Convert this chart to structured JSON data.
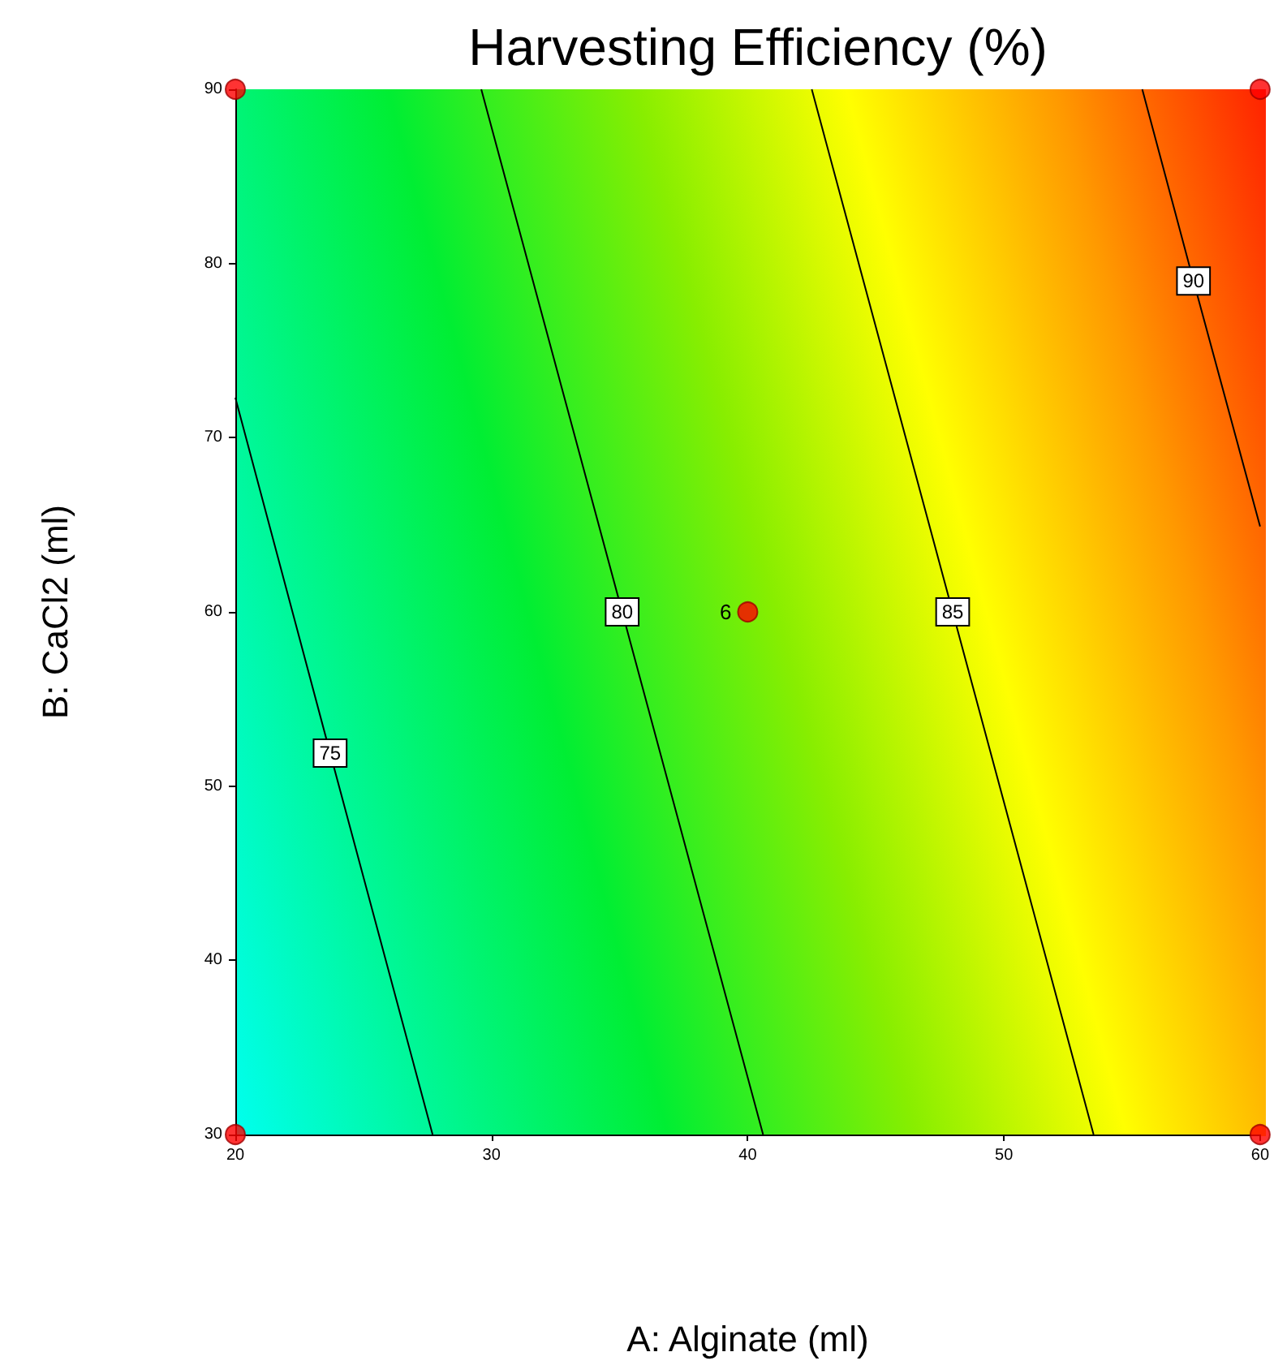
{
  "chart_data": {
    "type": "line",
    "title": "Harvesting Efficiency (%)",
    "xlabel": "A: Alginate (ml)",
    "ylabel": "B: CaCl2 (ml)",
    "xlim": [
      20,
      60
    ],
    "xticks": [
      20,
      30,
      40,
      50,
      60
    ],
    "ylim": [
      30,
      90
    ],
    "yticks": [
      30,
      40,
      50,
      60,
      70,
      80,
      90
    ],
    "grid": false,
    "legend": false,
    "line_style": "solid",
    "series": [
      {
        "name": "75",
        "color": "#000000",
        "x": [
          20,
          23.7,
          27.7
        ],
        "values": [
          72.3,
          51.9,
          30
        ]
      },
      {
        "name": "80",
        "color": "#000000",
        "x": [
          29.6,
          35.1,
          40.6
        ],
        "values": [
          90,
          60,
          30
        ]
      },
      {
        "name": "85",
        "color": "#000000",
        "x": [
          42.5,
          48.0,
          53.5
        ],
        "values": [
          90,
          60,
          30
        ]
      },
      {
        "name": "90",
        "color": "#000000",
        "x": [
          55.4,
          57.4,
          60
        ],
        "values": [
          90,
          79,
          64.9
        ]
      },
      {
        "type": "scatter",
        "color": "#ff0000",
        "marker": "circle",
        "x": [
          20,
          20,
          60,
          60,
          40
        ],
        "values": [
          30,
          90,
          30,
          90,
          60
        ]
      }
    ],
    "annotations": [
      {
        "text": "6",
        "x": 40,
        "y": 60
      }
    ]
  }
}
